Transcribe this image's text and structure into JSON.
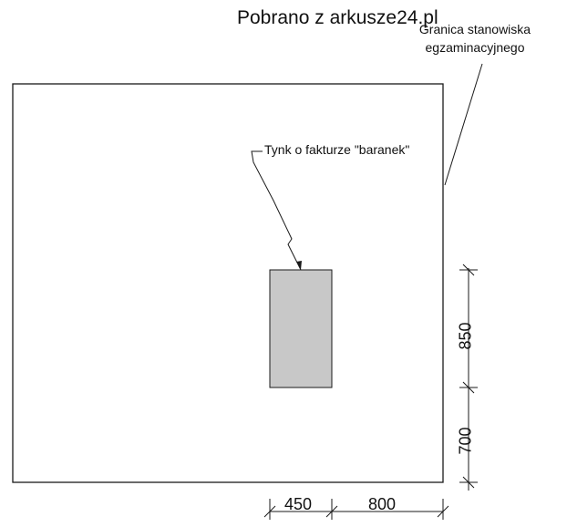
{
  "watermark": "Pobrano z arkusze24.pl",
  "annotations": {
    "boundary_line1": "Granica stanowiska",
    "boundary_line2": "egzaminacyjnego",
    "plaster": "Tynk o fakturze \"baranek\""
  },
  "dimensions": {
    "horizontal_left": "450",
    "horizontal_right": "800",
    "vertical_upper": "850",
    "vertical_lower": "700"
  },
  "colors": {
    "line": "#1a1a1a",
    "plaster_fill": "#c8c8c8"
  }
}
